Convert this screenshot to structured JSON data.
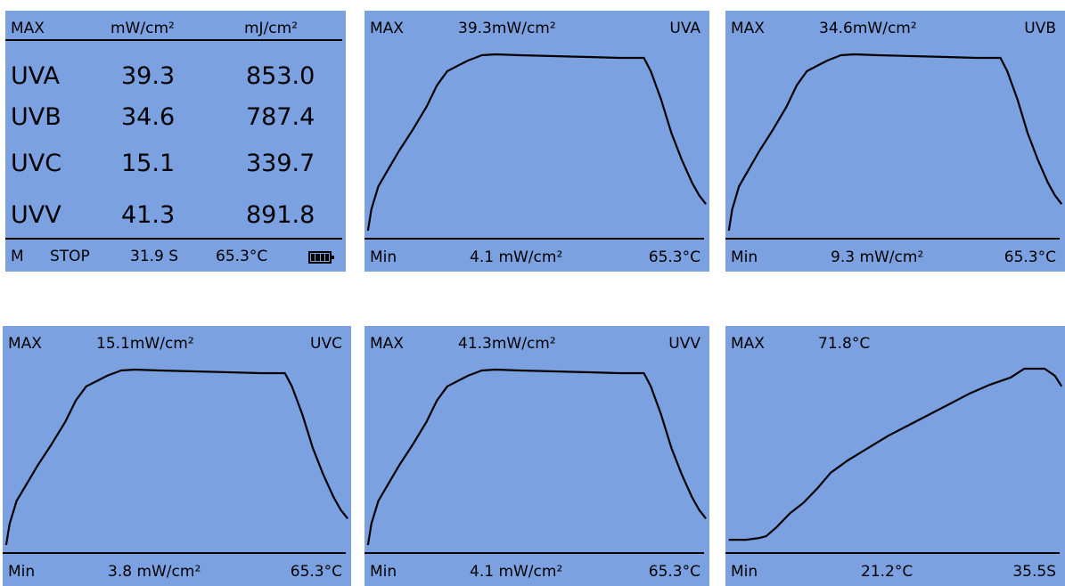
{
  "table_panel": {
    "header": {
      "label": "MAX",
      "col1": "mW/cm²",
      "col2": "mJ/cm²"
    },
    "rows": [
      {
        "band": "UVA",
        "power": "39.3",
        "energy": "853.0"
      },
      {
        "band": "UVB",
        "power": "34.6",
        "energy": "787.4"
      },
      {
        "band": "UVC",
        "power": "15.1",
        "energy": "339.7"
      },
      {
        "band": "UVV",
        "power": "41.3",
        "energy": "891.8"
      }
    ],
    "footer": {
      "mode": "M",
      "state": "STOP",
      "time": "31.9 S",
      "temp": "65.3°C"
    },
    "battery_icon": "battery-full-icon"
  },
  "graph_panels": [
    {
      "left": "MAX",
      "center": "39.3mW/cm²",
      "right": "UVA",
      "min_label": "Min",
      "min_value": "4.1 mW/cm²",
      "footer_right": "65.3°C",
      "curve": "uv"
    },
    {
      "left": "MAX",
      "center": "34.6mW/cm²",
      "right": "UVB",
      "min_label": "Min",
      "min_value": "9.3 mW/cm²",
      "footer_right": "65.3°C",
      "curve": "uv"
    },
    {
      "left": "MAX",
      "center": "15.1mW/cm²",
      "right": "UVC",
      "min_label": "Min",
      "min_value": "3.8 mW/cm²",
      "footer_right": "65.3°C",
      "curve": "uv"
    },
    {
      "left": "MAX",
      "center": "41.3mW/cm²",
      "right": "UVV",
      "min_label": "Min",
      "min_value": "4.1 mW/cm²",
      "footer_right": "65.3°C",
      "curve": "uv"
    },
    {
      "left": "MAX",
      "center": "71.8°C",
      "right": "",
      "min_label": "Min",
      "min_value": "21.2°C",
      "footer_right": "35.5S",
      "curve": "temp"
    }
  ],
  "colors": {
    "screen": "#7ba1e0",
    "ink": "#000000"
  }
}
